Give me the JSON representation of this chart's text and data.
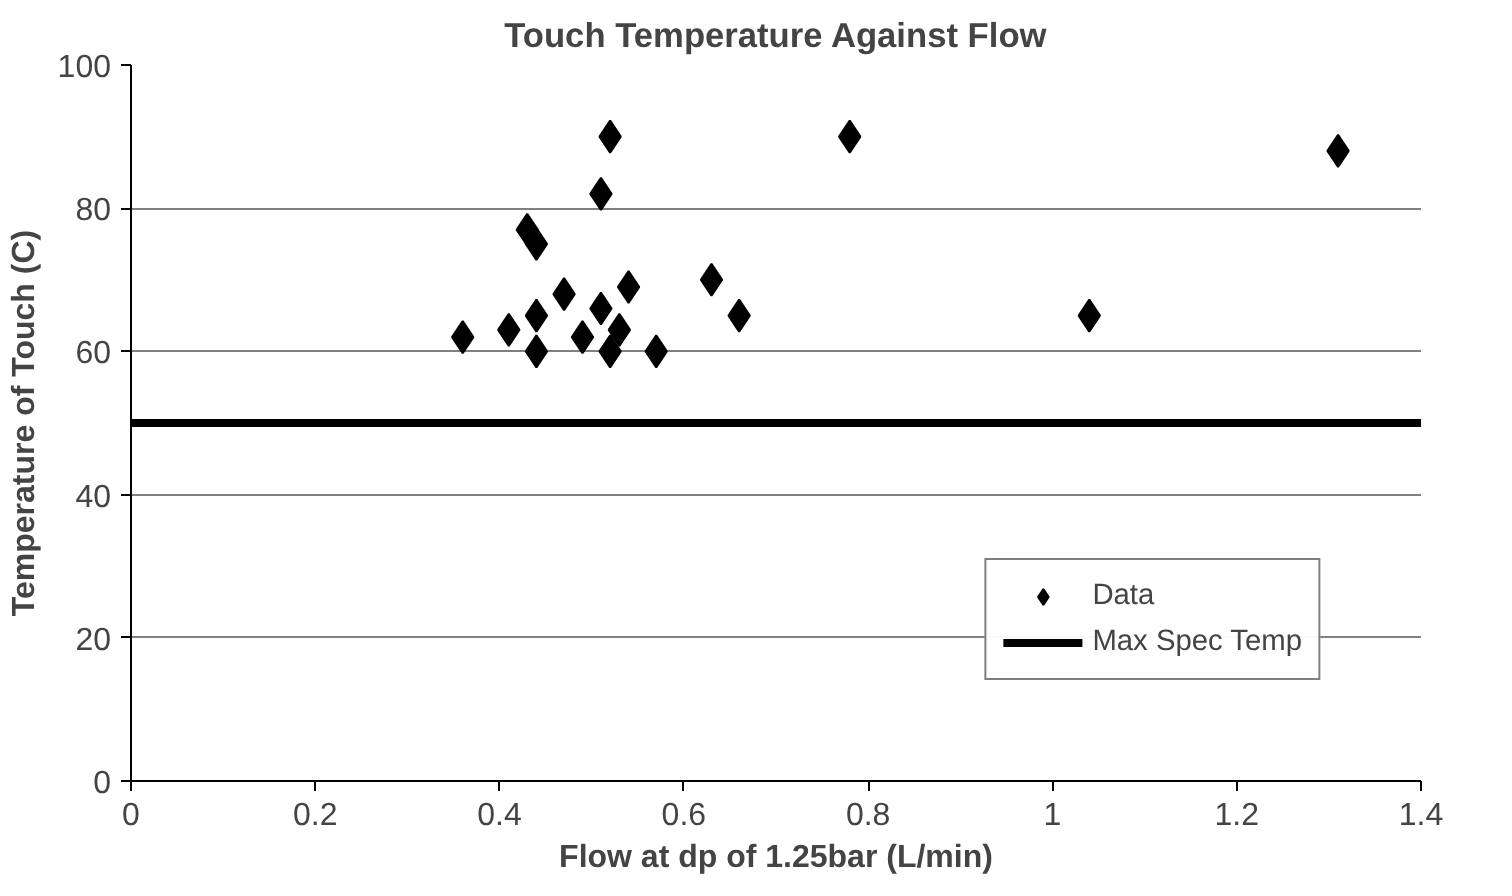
{
  "chart_data": {
    "type": "scatter",
    "title": "Touch Temperature Against Flow",
    "xlabel": "Flow at dp of 1.25bar (L/min)",
    "ylabel": "Temperature of Touch (C)",
    "xlim": [
      0,
      1.4
    ],
    "xticks": [
      0,
      0.2,
      0.4,
      0.6,
      0.8,
      1,
      1.2,
      1.4
    ],
    "ylim": [
      0,
      100
    ],
    "yticks": [
      0,
      20,
      40,
      60,
      80,
      100
    ],
    "grid": "y",
    "legend": "bottom right",
    "series": [
      {
        "name": "Data",
        "marker": "diamond",
        "color": "#000000",
        "x": [
          0.36,
          0.41,
          0.44,
          0.44,
          0.43,
          0.44,
          0.47,
          0.49,
          0.51,
          0.52,
          0.51,
          0.52,
          0.53,
          0.54,
          0.57,
          0.63,
          0.66,
          0.78,
          1.04,
          1.31
        ],
        "values": [
          62,
          63,
          60,
          65,
          77,
          75,
          68,
          62,
          82,
          90,
          66,
          60,
          63,
          69,
          60,
          70,
          65,
          90,
          65,
          88
        ]
      },
      {
        "name": "Max Spec Temp",
        "type": "line",
        "color": "#000000",
        "x": [
          0,
          1.4
        ],
        "values": [
          50,
          50
        ]
      }
    ]
  }
}
